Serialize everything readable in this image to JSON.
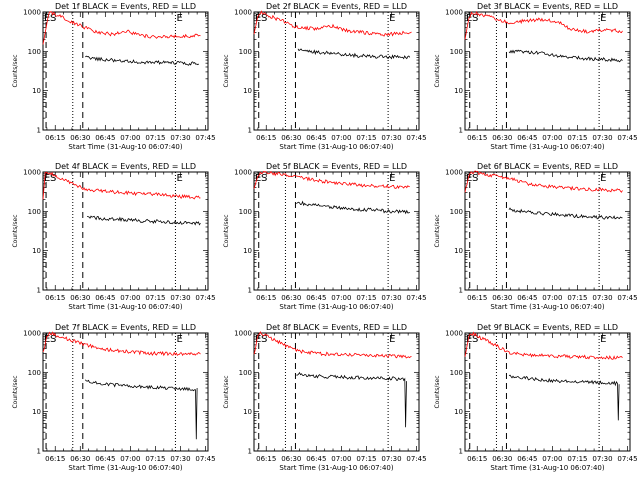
{
  "colors": {
    "events": "#000000",
    "lld": "#ff0000",
    "axes": "#000000",
    "background": "#ffffff"
  },
  "chart_data": [
    {
      "type": "line",
      "title": "Det 1f BLACK = Events, RED = LLD",
      "xlabel": "Start Time (31-Aug-10 06:07:40)",
      "ylabel": "Counts/sec",
      "yscale": "log",
      "ylim": [
        1,
        1000
      ],
      "xlim": [
        "06:07:40",
        "07:46:30"
      ],
      "ytick_labels": [
        "1",
        "10",
        "100",
        "1000"
      ],
      "xtick_labels": [
        "06:15",
        "06:30",
        "06:45",
        "07:00",
        "07:15",
        "07:30",
        "07:45"
      ],
      "marker_labels": {
        "start": "E",
        "sep": "S",
        "end": "E"
      },
      "series": [
        {
          "name": "Events",
          "color": "#000000",
          "points": [
            [
              "06:33:00",
              70
            ],
            [
              "06:45:00",
              62
            ],
            [
              "07:00:00",
              55
            ],
            [
              "07:15:00",
              52
            ],
            [
              "07:30:00",
              50
            ],
            [
              "07:41:00",
              48
            ]
          ]
        },
        {
          "name": "LLD",
          "color": "#ff0000",
          "points": [
            [
              "06:07:40",
              150
            ],
            [
              "06:10:00",
              500
            ],
            [
              "06:11:30",
              1000
            ],
            [
              "06:33:00",
              400
            ],
            [
              "06:40:00",
              300
            ],
            [
              "06:50:00",
              270
            ],
            [
              "06:58:00",
              330
            ],
            [
              "07:05:00",
              260
            ],
            [
              "07:15:00",
              230
            ],
            [
              "07:30:00",
              240
            ],
            [
              "07:42:00",
              250
            ]
          ]
        }
      ]
    },
    {
      "type": "line",
      "title": "Det 2f BLACK = Events, RED = LLD",
      "xlabel": "Start Time (31-Aug-10 06:07:40)",
      "ylabel": "Counts/sec",
      "yscale": "log",
      "ylim": [
        1,
        1000
      ],
      "xlim": [
        "06:07:40",
        "07:46:30"
      ],
      "ytick_labels": [
        "1",
        "10",
        "100",
        "1000"
      ],
      "xtick_labels": [
        "06:15",
        "06:30",
        "06:45",
        "07:00",
        "07:15",
        "07:30",
        "07:45"
      ],
      "marker_labels": {
        "start": "E",
        "sep": "S",
        "end": "E"
      },
      "series": [
        {
          "name": "Events",
          "color": "#000000",
          "points": [
            [
              "06:34:00",
              105
            ],
            [
              "06:45:00",
              95
            ],
            [
              "06:55:00",
              90
            ],
            [
              "07:05:00",
              80
            ],
            [
              "07:15:00",
              75
            ],
            [
              "07:30:00",
              72
            ],
            [
              "07:41:00",
              70
            ]
          ]
        },
        {
          "name": "LLD",
          "color": "#ff0000",
          "points": [
            [
              "06:07:40",
              300
            ],
            [
              "06:10:00",
              700
            ],
            [
              "06:11:30",
              1000
            ],
            [
              "06:34:00",
              400
            ],
            [
              "06:45:00",
              380
            ],
            [
              "06:55:00",
              430
            ],
            [
              "07:05:00",
              320
            ],
            [
              "07:15:00",
              300
            ],
            [
              "07:25:00",
              260
            ],
            [
              "07:35:00",
              290
            ],
            [
              "07:42:00",
              310
            ]
          ]
        }
      ]
    },
    {
      "type": "line",
      "title": "Det 3f BLACK = Events, RED = LLD",
      "xlabel": "Start Time (31-Aug-10 06:07:40)",
      "ylabel": "Counts/sec",
      "yscale": "log",
      "ylim": [
        1,
        1000
      ],
      "xlim": [
        "06:07:40",
        "07:46:30"
      ],
      "ytick_labels": [
        "1",
        "10",
        "100",
        "1000"
      ],
      "xtick_labels": [
        "06:15",
        "06:30",
        "06:45",
        "07:00",
        "07:15",
        "07:30",
        "07:45"
      ],
      "marker_labels": {
        "start": "E",
        "sep": "S",
        "end": "E"
      },
      "series": [
        {
          "name": "Events",
          "color": "#000000",
          "points": [
            [
              "06:34:00",
              100
            ],
            [
              "06:45:00",
              95
            ],
            [
              "06:55:00",
              90
            ],
            [
              "07:05:00",
              75
            ],
            [
              "07:15:00",
              68
            ],
            [
              "07:30:00",
              62
            ],
            [
              "07:42:00",
              58
            ]
          ]
        },
        {
          "name": "LLD",
          "color": "#ff0000",
          "points": [
            [
              "06:07:40",
              200
            ],
            [
              "06:10:00",
              700
            ],
            [
              "06:11:30",
              1000
            ],
            [
              "06:34:00",
              550
            ],
            [
              "06:45:00",
              600
            ],
            [
              "06:55:00",
              650
            ],
            [
              "07:05:00",
              520
            ],
            [
              "07:10:00",
              380
            ],
            [
              "07:20:00",
              320
            ],
            [
              "07:30:00",
              350
            ],
            [
              "07:42:00",
              330
            ]
          ]
        }
      ]
    },
    {
      "type": "line",
      "title": "Det 4f BLACK = Events, RED = LLD",
      "xlabel": "Start Time (31-Aug-10 06:07:40)",
      "ylabel": "Counts/sec",
      "yscale": "log",
      "ylim": [
        1,
        1000
      ],
      "xlim": [
        "06:07:40",
        "07:46:30"
      ],
      "ytick_labels": [
        "1",
        "10",
        "100",
        "1000"
      ],
      "xtick_labels": [
        "06:15",
        "06:30",
        "06:45",
        "07:00",
        "07:15",
        "07:30",
        "07:45"
      ],
      "marker_labels": {
        "start": "E",
        "sep": "S",
        "end": "E"
      },
      "series": [
        {
          "name": "Events",
          "color": "#000000",
          "points": [
            [
              "06:34:00",
              70
            ],
            [
              "06:45:00",
              65
            ],
            [
              "07:00:00",
              60
            ],
            [
              "07:15:00",
              55
            ],
            [
              "07:30:00",
              52
            ],
            [
              "07:42:00",
              50
            ]
          ]
        },
        {
          "name": "LLD",
          "color": "#ff0000",
          "points": [
            [
              "06:07:40",
              200
            ],
            [
              "06:09:00",
              900
            ],
            [
              "06:10:00",
              1000
            ],
            [
              "06:33:30",
              350
            ],
            [
              "06:45:00",
              320
            ],
            [
              "07:00:00",
              290
            ],
            [
              "07:15:00",
              270
            ],
            [
              "07:30:00",
              240
            ],
            [
              "07:42:00",
              220
            ]
          ]
        }
      ]
    },
    {
      "type": "line",
      "title": "Det 5f BLACK = Events, RED = LLD",
      "xlabel": "Start Time (31-Aug-10 06:07:40)",
      "ylabel": "Counts/sec",
      "yscale": "log",
      "ylim": [
        1,
        1000
      ],
      "xlim": [
        "06:07:40",
        "07:46:30"
      ],
      "ytick_labels": [
        "1",
        "10",
        "100",
        "1000"
      ],
      "xtick_labels": [
        "06:15",
        "06:30",
        "06:45",
        "07:00",
        "07:15",
        "07:30",
        "07:45"
      ],
      "marker_labels": {
        "start": "E",
        "sep": "S",
        "end": "E"
      },
      "series": [
        {
          "name": "Events",
          "color": "#000000",
          "points": [
            [
              "06:33:00",
              170
            ],
            [
              "06:45:00",
              140
            ],
            [
              "07:00:00",
              120
            ],
            [
              "07:15:00",
              110
            ],
            [
              "07:30:00",
              100
            ],
            [
              "07:41:00",
              95
            ]
          ]
        },
        {
          "name": "LLD",
          "color": "#ff0000",
          "points": [
            [
              "06:07:40",
              400
            ],
            [
              "06:10:00",
              800
            ],
            [
              "06:11:30",
              1000
            ],
            [
              "06:33:00",
              800
            ],
            [
              "06:45:00",
              600
            ],
            [
              "07:00:00",
              520
            ],
            [
              "07:15:00",
              450
            ],
            [
              "07:30:00",
              420
            ],
            [
              "07:41:00",
              420
            ]
          ]
        }
      ]
    },
    {
      "type": "line",
      "title": "Det 6f BLACK = Events, RED = LLD",
      "xlabel": "Start Time (31-Aug-10 06:07:40)",
      "ylabel": "Counts/sec",
      "yscale": "log",
      "ylim": [
        1,
        1000
      ],
      "xlim": [
        "06:07:40",
        "07:46:30"
      ],
      "ytick_labels": [
        "1",
        "10",
        "100",
        "1000"
      ],
      "xtick_labels": [
        "06:15",
        "06:30",
        "06:45",
        "07:00",
        "07:15",
        "07:30",
        "07:45"
      ],
      "marker_labels": {
        "start": "E",
        "sep": "S",
        "end": "E"
      },
      "series": [
        {
          "name": "Events",
          "color": "#000000",
          "points": [
            [
              "06:34:00",
              110
            ],
            [
              "06:45:00",
              95
            ],
            [
              "07:00:00",
              85
            ],
            [
              "07:15:00",
              75
            ],
            [
              "07:30:00",
              70
            ],
            [
              "07:42:00",
              68
            ]
          ]
        },
        {
          "name": "LLD",
          "color": "#ff0000",
          "points": [
            [
              "06:07:40",
              300
            ],
            [
              "06:10:00",
              800
            ],
            [
              "06:11:30",
              1000
            ],
            [
              "06:34:00",
              700
            ],
            [
              "06:45:00",
              500
            ],
            [
              "07:00:00",
              420
            ],
            [
              "07:15:00",
              380
            ],
            [
              "07:30:00",
              350
            ],
            [
              "07:42:00",
              340
            ]
          ]
        }
      ]
    },
    {
      "type": "line",
      "title": "Det 7f BLACK = Events, RED = LLD",
      "xlabel": "Start Time (31-Aug-10 06:07:40)",
      "ylabel": "Counts/sec",
      "yscale": "log",
      "ylim": [
        1,
        1000
      ],
      "xlim": [
        "06:07:40",
        "07:46:30"
      ],
      "ytick_labels": [
        "1",
        "10",
        "100",
        "1000"
      ],
      "xtick_labels": [
        "06:15",
        "06:30",
        "06:45",
        "07:00",
        "07:15",
        "07:30",
        "07:45"
      ],
      "marker_labels": {
        "start": "E",
        "sep": "S",
        "end": "E"
      },
      "series": [
        {
          "name": "Events",
          "color": "#000000",
          "points": [
            [
              "06:33:00",
              60
            ],
            [
              "06:45:00",
              50
            ],
            [
              "07:00:00",
              45
            ],
            [
              "07:15:00",
              42
            ],
            [
              "07:30:00",
              38
            ],
            [
              "07:39:00",
              36
            ],
            [
              "07:39:30",
              2
            ],
            [
              "07:40:00",
              40
            ]
          ]
        },
        {
          "name": "LLD",
          "color": "#ff0000",
          "points": [
            [
              "06:07:40",
              300
            ],
            [
              "06:10:00",
              800
            ],
            [
              "06:11:30",
              1000
            ],
            [
              "06:33:00",
              500
            ],
            [
              "06:45:00",
              380
            ],
            [
              "07:00:00",
              330
            ],
            [
              "07:15:00",
              300
            ],
            [
              "07:30:00",
              290
            ],
            [
              "07:42:00",
              290
            ]
          ]
        }
      ]
    },
    {
      "type": "line",
      "title": "Det 8f BLACK = Events, RED = LLD",
      "xlabel": "Start Time (31-Aug-10 06:07:40)",
      "ylabel": "Counts/sec",
      "yscale": "log",
      "ylim": [
        1,
        1000
      ],
      "xlim": [
        "06:07:40",
        "07:46:30"
      ],
      "ytick_labels": [
        "1",
        "10",
        "100",
        "1000"
      ],
      "xtick_labels": [
        "06:15",
        "06:30",
        "06:45",
        "07:00",
        "07:15",
        "07:30",
        "07:45"
      ],
      "marker_labels": {
        "start": "E",
        "sep": "S",
        "end": "E"
      },
      "series": [
        {
          "name": "Events",
          "color": "#000000",
          "points": [
            [
              "06:33:00",
              90
            ],
            [
              "06:45:00",
              80
            ],
            [
              "07:00:00",
              75
            ],
            [
              "07:15:00",
              72
            ],
            [
              "07:30:00",
              70
            ],
            [
              "07:38:00",
              68
            ],
            [
              "07:38:30",
              4
            ],
            [
              "07:39:00",
              60
            ]
          ]
        },
        {
          "name": "LLD",
          "color": "#ff0000",
          "points": [
            [
              "06:07:40",
              300
            ],
            [
              "06:10:00",
              800
            ],
            [
              "06:11:30",
              1000
            ],
            [
              "06:33:00",
              350
            ],
            [
              "06:45:00",
              300
            ],
            [
              "07:00:00",
              280
            ],
            [
              "07:15:00",
              270
            ],
            [
              "07:30:00",
              260
            ],
            [
              "07:42:00",
              255
            ]
          ]
        }
      ]
    },
    {
      "type": "line",
      "title": "Det 9f BLACK = Events, RED = LLD",
      "xlabel": "Start Time (31-Aug-10 06:07:40)",
      "ylabel": "Counts/sec",
      "yscale": "log",
      "ylim": [
        1,
        1000
      ],
      "xlim": [
        "06:07:40",
        "07:46:30"
      ],
      "ytick_labels": [
        "1",
        "10",
        "100",
        "1000"
      ],
      "xtick_labels": [
        "06:15",
        "06:30",
        "06:45",
        "07:00",
        "07:15",
        "07:30",
        "07:45"
      ],
      "marker_labels": {
        "start": "E",
        "sep": "S",
        "end": "E"
      },
      "series": [
        {
          "name": "Events",
          "color": "#000000",
          "points": [
            [
              "06:34:00",
              80
            ],
            [
              "06:45:00",
              70
            ],
            [
              "07:00:00",
              62
            ],
            [
              "07:15:00",
              58
            ],
            [
              "07:30:00",
              55
            ],
            [
              "07:39:00",
              52
            ],
            [
              "07:39:30",
              6
            ],
            [
              "07:40:00",
              50
            ]
          ]
        },
        {
          "name": "LLD",
          "color": "#ff0000",
          "points": [
            [
              "06:07:40",
              250
            ],
            [
              "06:10:00",
              800
            ],
            [
              "06:11:30",
              1000
            ],
            [
              "06:34:00",
              320
            ],
            [
              "06:45:00",
              280
            ],
            [
              "07:00:00",
              260
            ],
            [
              "07:15:00",
              250
            ],
            [
              "07:30:00",
              240
            ],
            [
              "07:42:00",
              235
            ]
          ]
        }
      ]
    }
  ],
  "markers": {
    "dashed_times": [
      "06:09:30",
      "06:31:30"
    ],
    "dotted_times": [
      "06:25:30",
      "07:27:00"
    ],
    "panel_offsets_min": [
      0,
      1,
      1,
      0,
      1,
      1,
      0,
      1,
      1
    ]
  }
}
